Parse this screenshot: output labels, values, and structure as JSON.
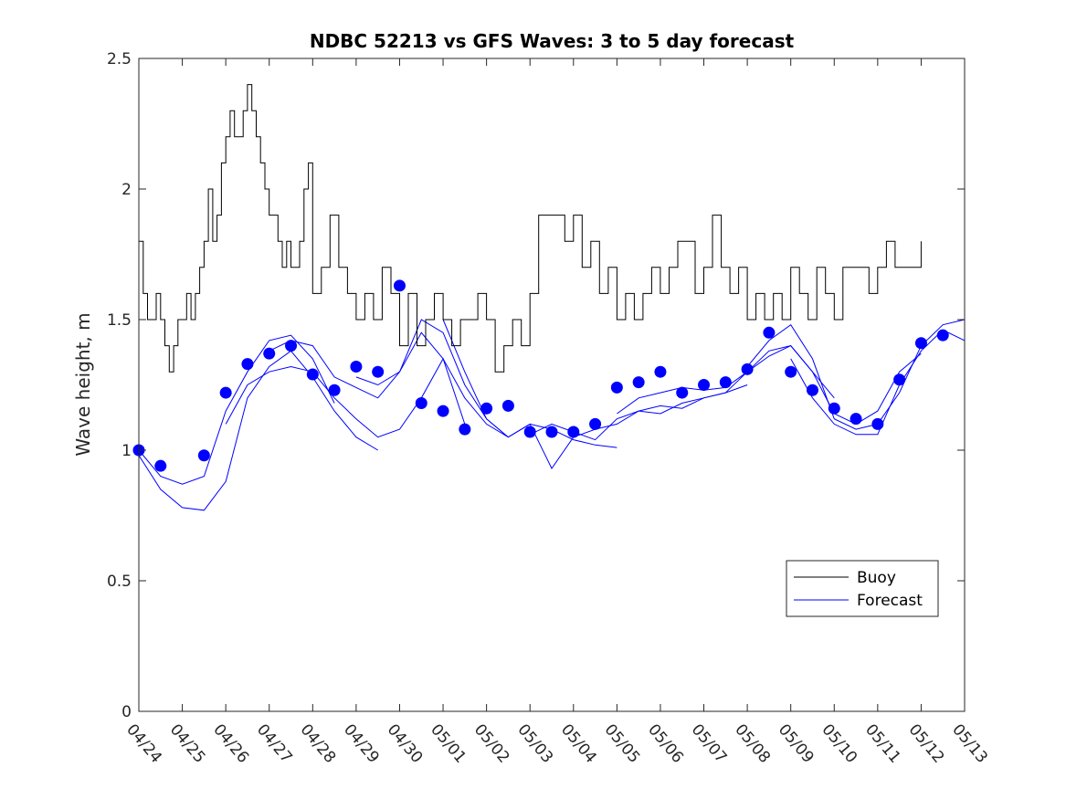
{
  "chart_data": {
    "type": "line",
    "title": "NDBC 52213 vs GFS Waves: 3 to 5 day forecast",
    "xlabel": "",
    "ylabel": "Wave height, m",
    "x_unit": "day",
    "xlim": [
      0,
      19
    ],
    "ylim": [
      0,
      2.5
    ],
    "x_ticks": [
      "04/24",
      "04/25",
      "04/26",
      "04/27",
      "04/28",
      "04/29",
      "04/30",
      "05/01",
      "05/02",
      "05/03",
      "05/04",
      "05/05",
      "05/06",
      "05/07",
      "05/08",
      "05/09",
      "05/10",
      "05/11",
      "05/12",
      "05/13"
    ],
    "y_ticks": [
      0,
      0.5,
      1,
      1.5,
      2,
      2.5
    ],
    "y_tick_labels": [
      "0",
      "0.5",
      "1",
      "1.5",
      "2",
      "2.5"
    ],
    "grid": false,
    "legend_position": "lower-right",
    "colors": {
      "buoy": "#000000",
      "forecast": "#0000ff"
    },
    "series": [
      {
        "name": "Buoy",
        "style": "line",
        "x": [
          0,
          0.1,
          0.2,
          0.3,
          0.4,
          0.5,
          0.6,
          0.7,
          0.8,
          0.9,
          1.0,
          1.1,
          1.2,
          1.3,
          1.4,
          1.5,
          1.6,
          1.7,
          1.8,
          1.9,
          2.0,
          2.1,
          2.2,
          2.3,
          2.4,
          2.5,
          2.6,
          2.7,
          2.8,
          2.9,
          3.0,
          3.1,
          3.2,
          3.3,
          3.4,
          3.5,
          3.6,
          3.7,
          3.8,
          3.9,
          4.0,
          4.2,
          4.4,
          4.6,
          4.8,
          5.0,
          5.2,
          5.4,
          5.6,
          5.8,
          6.0,
          6.2,
          6.4,
          6.6,
          6.8,
          7.0,
          7.2,
          7.4,
          7.6,
          7.8,
          8.0,
          8.2,
          8.4,
          8.6,
          8.8,
          9.0,
          9.2,
          9.4,
          9.6,
          9.8,
          10.0,
          10.2,
          10.4,
          10.6,
          10.8,
          11.0,
          11.2,
          11.4,
          11.6,
          11.8,
          12.0,
          12.2,
          12.4,
          12.6,
          12.8,
          13.0,
          13.2,
          13.4,
          13.6,
          13.8,
          14.0,
          14.2,
          14.4,
          14.6,
          14.8,
          15.0,
          15.2,
          15.4,
          15.6,
          15.8,
          16.0,
          16.2,
          16.4,
          16.6,
          16.8,
          17.0,
          17.2,
          17.4,
          17.6,
          17.8,
          18.0
        ],
        "values": [
          1.8,
          1.6,
          1.5,
          1.5,
          1.6,
          1.5,
          1.4,
          1.3,
          1.4,
          1.5,
          1.5,
          1.6,
          1.5,
          1.6,
          1.7,
          1.8,
          2.0,
          1.8,
          1.9,
          2.1,
          2.2,
          2.3,
          2.2,
          2.2,
          2.3,
          2.4,
          2.3,
          2.2,
          2.1,
          2.0,
          1.9,
          1.9,
          1.8,
          1.7,
          1.8,
          1.7,
          1.7,
          1.8,
          2.0,
          2.1,
          1.6,
          1.7,
          1.9,
          1.7,
          1.6,
          1.5,
          1.6,
          1.5,
          1.7,
          1.6,
          1.4,
          1.6,
          1.4,
          1.5,
          1.6,
          1.5,
          1.4,
          1.5,
          1.5,
          1.6,
          1.5,
          1.3,
          1.4,
          1.5,
          1.4,
          1.6,
          1.9,
          1.9,
          1.9,
          1.8,
          1.9,
          1.7,
          1.8,
          1.6,
          1.7,
          1.5,
          1.6,
          1.5,
          1.6,
          1.7,
          1.6,
          1.7,
          1.8,
          1.8,
          1.6,
          1.7,
          1.9,
          1.7,
          1.6,
          1.7,
          1.5,
          1.6,
          1.5,
          1.6,
          1.5,
          1.7,
          1.6,
          1.5,
          1.7,
          1.6,
          1.5,
          1.7,
          1.7,
          1.7,
          1.6,
          1.7,
          1.8,
          1.7,
          1.7,
          1.7,
          1.8
        ]
      },
      {
        "name": "Forecast",
        "style": "lines",
        "runs": [
          {
            "x": [
              0,
              0.5,
              1,
              1.5,
              2,
              2.5,
              3,
              3.5,
              4,
              4.5
            ],
            "values": [
              1.0,
              0.9,
              0.87,
              0.9,
              1.15,
              1.3,
              1.42,
              1.44,
              1.35,
              1.18
            ]
          },
          {
            "x": [
              0,
              0.5,
              1,
              1.5,
              2,
              2.5,
              3,
              3.5,
              4,
              4.5,
              5,
              5.5
            ],
            "values": [
              0.98,
              0.85,
              0.78,
              0.77,
              0.88,
              1.2,
              1.32,
              1.38,
              1.28,
              1.15,
              1.05,
              1.0
            ]
          },
          {
            "x": [
              2,
              2.5,
              3,
              3.5,
              4,
              4.5,
              5,
              5.5,
              6,
              6.5,
              7,
              7.5
            ],
            "values": [
              1.1,
              1.25,
              1.3,
              1.32,
              1.3,
              1.2,
              1.12,
              1.05,
              1.08,
              1.2,
              1.35,
              1.1
            ]
          },
          {
            "x": [
              3,
              3.5,
              4,
              4.5,
              5,
              5.5,
              6,
              6.5,
              7,
              7.5,
              8,
              8.5
            ],
            "values": [
              1.38,
              1.42,
              1.4,
              1.28,
              1.24,
              1.2,
              1.3,
              1.5,
              1.45,
              1.25,
              1.12,
              1.05
            ]
          },
          {
            "x": [
              5,
              5.5,
              6,
              6.5,
              7,
              7.5,
              8,
              8.5,
              9,
              9.5,
              10,
              10.5,
              11
            ],
            "values": [
              1.28,
              1.25,
              1.3,
              1.45,
              1.35,
              1.2,
              1.1,
              1.05,
              1.1,
              1.08,
              1.04,
              1.02,
              1.01
            ]
          },
          {
            "x": [
              7,
              7.5,
              8,
              8.5,
              9,
              9.5,
              10,
              10.5,
              11,
              11.5,
              12,
              12.5,
              13,
              13.5,
              14
            ],
            "values": [
              1.5,
              1.3,
              1.12,
              1.05,
              1.1,
              0.93,
              1.05,
              1.08,
              1.1,
              1.15,
              1.17,
              1.16,
              1.2,
              1.22,
              1.25
            ]
          },
          {
            "x": [
              9,
              9.5,
              10,
              10.5,
              11,
              11.5,
              12,
              12.5,
              13,
              13.5,
              14,
              14.5,
              15,
              15.5,
              16
            ],
            "values": [
              1.06,
              1.1,
              1.07,
              1.04,
              1.12,
              1.15,
              1.14,
              1.18,
              1.2,
              1.22,
              1.3,
              1.38,
              1.4,
              1.3,
              1.2
            ]
          },
          {
            "x": [
              11,
              11.5,
              12,
              12.5,
              13,
              13.5,
              14,
              14.5,
              15,
              15.5,
              16,
              16.5,
              17,
              17.5,
              18
            ],
            "values": [
              1.14,
              1.2,
              1.22,
              1.24,
              1.23,
              1.24,
              1.3,
              1.36,
              1.4,
              1.3,
              1.14,
              1.1,
              1.15,
              1.3,
              1.37
            ]
          },
          {
            "x": [
              14,
              14.5,
              15,
              15.5,
              16,
              16.5,
              17,
              17.5,
              18,
              18.5,
              19
            ],
            "values": [
              1.32,
              1.42,
              1.48,
              1.35,
              1.12,
              1.08,
              1.1,
              1.22,
              1.4,
              1.48,
              1.5
            ]
          },
          {
            "x": [
              15,
              15.5,
              16,
              16.5,
              17,
              17.5,
              18,
              18.5,
              19
            ],
            "values": [
              1.35,
              1.2,
              1.1,
              1.06,
              1.06,
              1.25,
              1.38,
              1.46,
              1.42
            ]
          }
        ],
        "points": {
          "x": [
            0,
            0.5,
            1.5,
            2,
            2.5,
            3,
            3.5,
            4,
            4.5,
            5,
            5.5,
            6,
            6.5,
            7,
            7.5,
            8,
            8.5,
            9,
            9.5,
            10,
            10.5,
            11,
            11.5,
            12,
            12.5,
            13,
            13.5,
            14,
            14.5,
            15,
            15.5,
            16,
            16.5,
            17,
            17.5,
            18,
            18.5
          ],
          "values": [
            1.0,
            0.94,
            0.98,
            1.22,
            1.33,
            1.37,
            1.4,
            1.29,
            1.23,
            1.32,
            1.3,
            1.63,
            1.18,
            1.15,
            1.08,
            1.16,
            1.17,
            1.07,
            1.07,
            1.07,
            1.1,
            1.24,
            1.26,
            1.3,
            1.22,
            1.25,
            1.26,
            1.31,
            1.45,
            1.3,
            1.23,
            1.16,
            1.12,
            1.1,
            1.27,
            1.41,
            1.44
          ]
        }
      }
    ]
  }
}
